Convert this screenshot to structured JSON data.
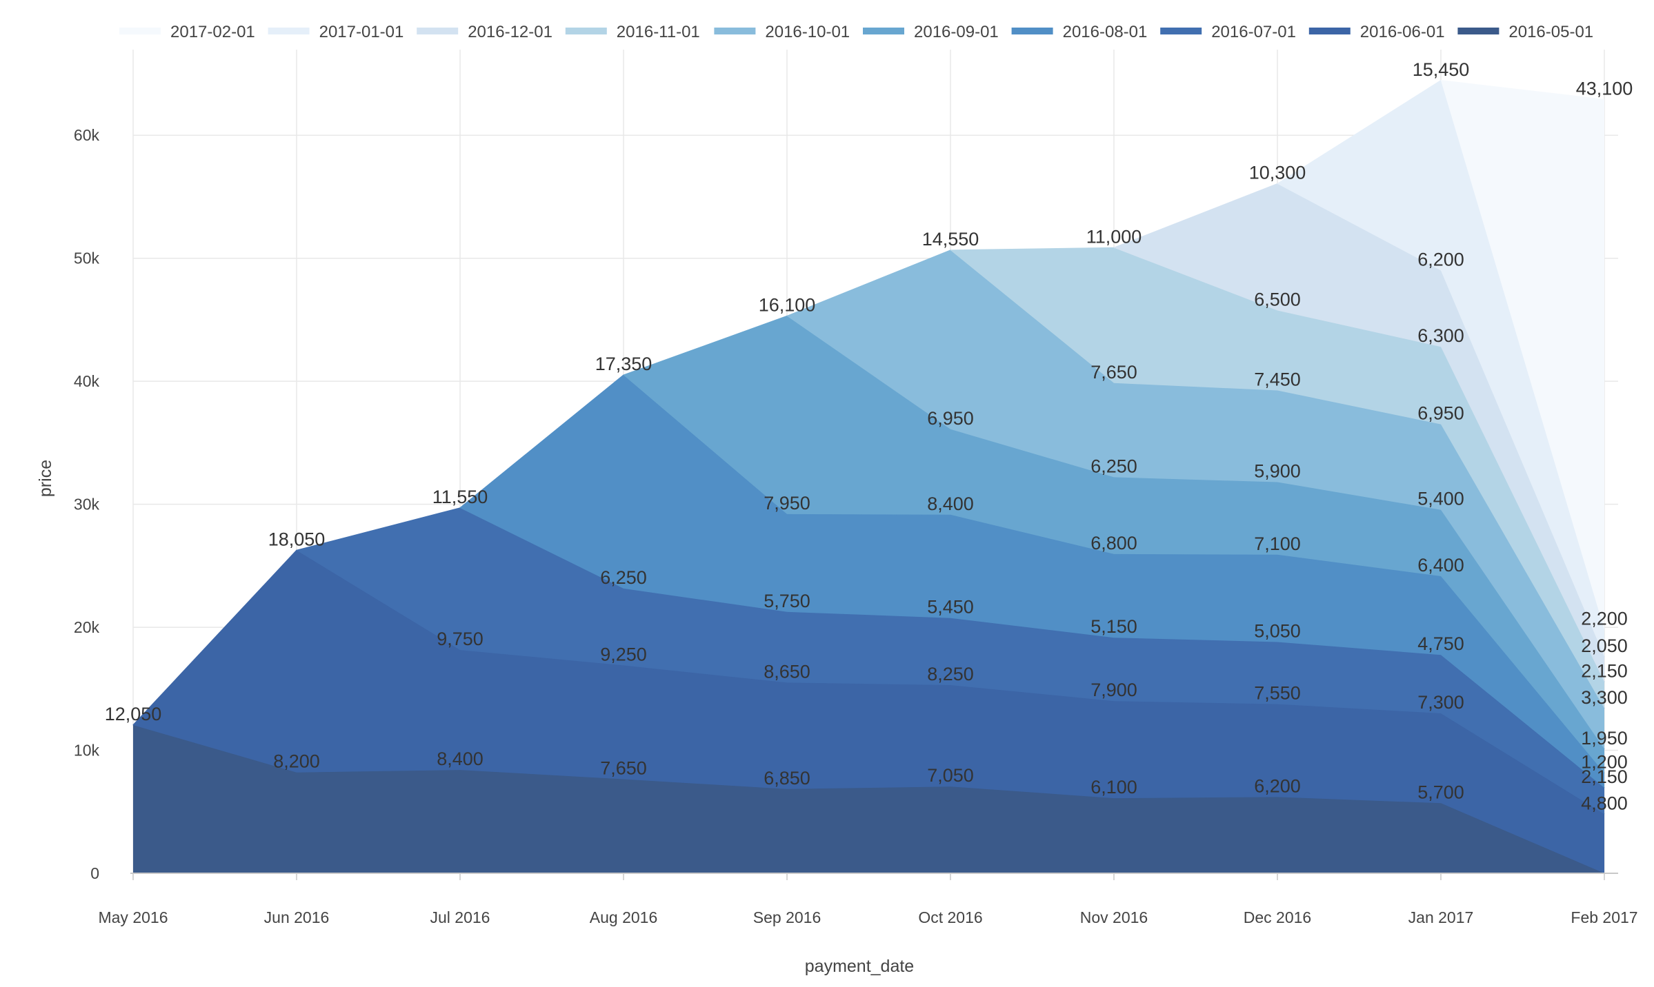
{
  "chart_data": {
    "type": "area",
    "stacked": true,
    "xlabel": "payment_date",
    "ylabel": "price",
    "ylim": [
      0,
      67000
    ],
    "y_ticks": [
      0,
      10000,
      20000,
      30000,
      40000,
      50000,
      60000
    ],
    "y_tick_labels": [
      "0",
      "10k",
      "20k",
      "30k",
      "40k",
      "50k",
      "60k"
    ],
    "x_tick_labels": [
      "May 2016",
      "Jun 2016",
      "Jul 2016",
      "Aug 2016",
      "Sep 2016",
      "Oct 2016",
      "Nov 2016",
      "Dec 2016",
      "Jan 2017",
      "Feb 2017"
    ],
    "grid": true,
    "legend_position": "top",
    "legend_order": [
      "2017-02-01",
      "2017-01-01",
      "2016-12-01",
      "2016-11-01",
      "2016-10-01",
      "2016-09-01",
      "2016-08-01",
      "2016-07-01",
      "2016-06-01",
      "2016-05-01"
    ],
    "series": [
      {
        "name": "2016-05-01",
        "color": "#3b5a8a",
        "start": 0,
        "values": [
          12050,
          8200,
          8400,
          7650,
          6850,
          7050,
          6100,
          6200,
          5700,
          null
        ],
        "labels": [
          "12,050",
          "8,200",
          "8,400",
          "7,650",
          "6,850",
          "7,050",
          "6,100",
          "6,200",
          "5,700",
          null
        ]
      },
      {
        "name": "2016-06-01",
        "color": "#3c65a6",
        "start": 1,
        "values": [
          null,
          18050,
          9750,
          9250,
          8650,
          8250,
          7900,
          7550,
          7300,
          4800
        ],
        "labels": [
          null,
          "18,050",
          "9,750",
          "9,250",
          "8,650",
          "8,250",
          "7,900",
          "7,550",
          "7,300",
          "4,800"
        ]
      },
      {
        "name": "2016-07-01",
        "color": "#416fb0",
        "start": 2,
        "values": [
          null,
          null,
          11550,
          6250,
          5750,
          5450,
          5150,
          5050,
          4750,
          2150
        ],
        "labels": [
          null,
          null,
          "11,550",
          "6,250",
          "5,750",
          "5,450",
          "5,150",
          "5,050",
          "4,750",
          "2,150"
        ]
      },
      {
        "name": "2016-08-01",
        "color": "#518fc6",
        "start": 3,
        "values": [
          null,
          null,
          null,
          17350,
          7950,
          8400,
          6800,
          7100,
          6400,
          1200
        ],
        "labels": [
          null,
          null,
          null,
          "17,350",
          "7,950",
          "8,400",
          "6,800",
          "7,100",
          "6,400",
          "1,200"
        ]
      },
      {
        "name": "2016-09-01",
        "color": "#68a6d0",
        "start": 4,
        "values": [
          null,
          null,
          null,
          null,
          16100,
          6950,
          6250,
          5900,
          5400,
          1950
        ],
        "labels": [
          null,
          null,
          null,
          null,
          "16,100",
          "6,950",
          "6,250",
          "5,900",
          "5,400",
          "1,950"
        ]
      },
      {
        "name": "2016-10-01",
        "color": "#89bcdc",
        "start": 5,
        "values": [
          null,
          null,
          null,
          null,
          null,
          14550,
          7650,
          7450,
          6950,
          3300
        ],
        "labels": [
          null,
          null,
          null,
          null,
          null,
          "14,550",
          "7,650",
          "7,450",
          "6,950",
          "3,300"
        ]
      },
      {
        "name": "2016-11-01",
        "color": "#b3d4e6",
        "start": 6,
        "values": [
          null,
          null,
          null,
          null,
          null,
          null,
          11000,
          6500,
          6300,
          2150
        ],
        "labels": [
          null,
          null,
          null,
          null,
          null,
          null,
          "11,000",
          "6,500",
          "6,300",
          "2,150"
        ]
      },
      {
        "name": "2016-12-01",
        "color": "#d3e2f1",
        "start": 7,
        "values": [
          null,
          null,
          null,
          null,
          null,
          null,
          null,
          10300,
          6200,
          2050
        ],
        "labels": [
          null,
          null,
          null,
          null,
          null,
          null,
          null,
          "10,300",
          "6,200",
          "2,050"
        ]
      },
      {
        "name": "2017-01-01",
        "color": "#e5eff9",
        "start": 8,
        "values": [
          null,
          null,
          null,
          null,
          null,
          null,
          null,
          null,
          15450,
          2200
        ],
        "labels": [
          null,
          null,
          null,
          null,
          null,
          null,
          null,
          null,
          "15,450",
          "2,200"
        ]
      },
      {
        "name": "2017-02-01",
        "color": "#f5f9fd",
        "start": 9,
        "values": [
          null,
          null,
          null,
          null,
          null,
          null,
          null,
          null,
          null,
          43100
        ],
        "labels": [
          null,
          null,
          null,
          null,
          null,
          null,
          null,
          null,
          null,
          "43,100"
        ]
      }
    ]
  }
}
